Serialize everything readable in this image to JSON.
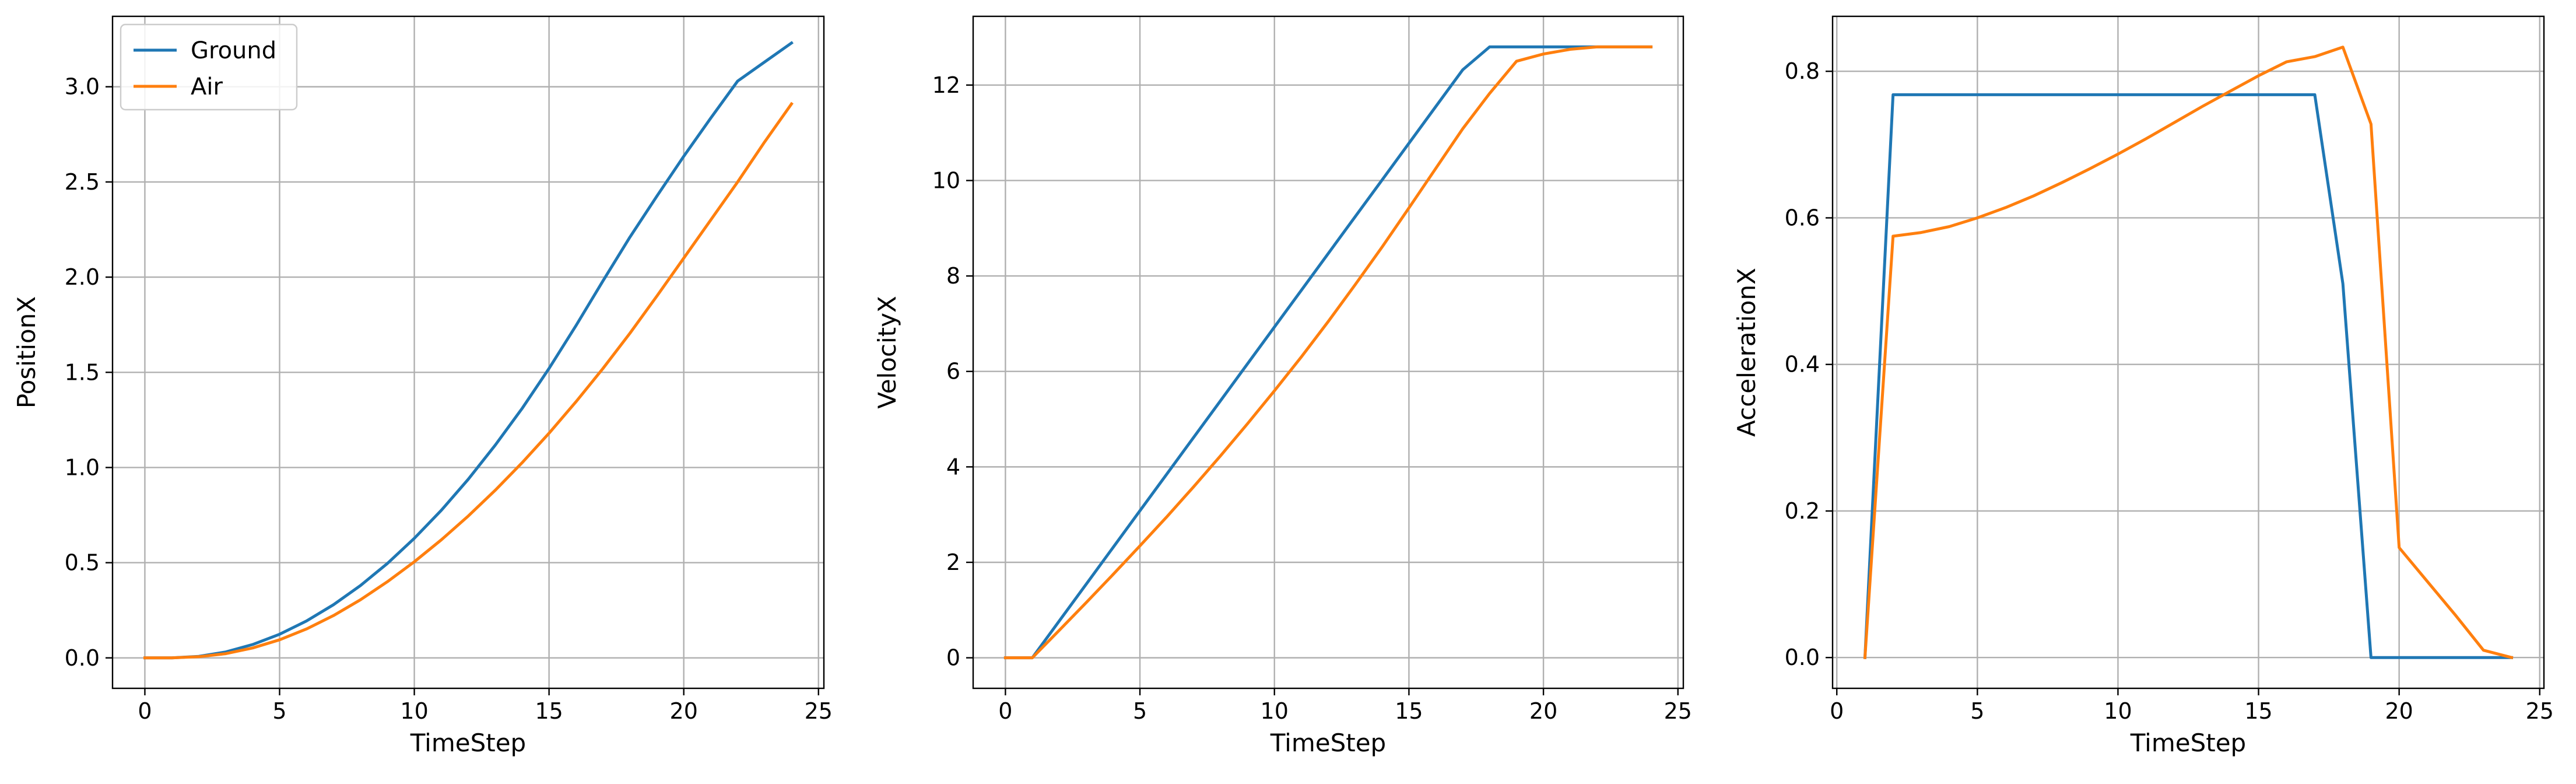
{
  "colors": {
    "ground": "#1f77b4",
    "air": "#ff7f0e",
    "grid": "#b0b0b0",
    "axes": "#000000"
  },
  "legend": {
    "placement": "upper-left",
    "entries": [
      "Ground",
      "Air"
    ]
  },
  "chart_data": [
    {
      "type": "line",
      "title": "",
      "xlabel": "TimeStep",
      "ylabel": "PositionX",
      "xlim": [
        -1.2,
        25.2
      ],
      "ylim": [
        -0.16,
        3.37
      ],
      "xticks": [
        0,
        5,
        10,
        15,
        20,
        25
      ],
      "yticks": [
        0.0,
        0.5,
        1.0,
        1.5,
        2.0,
        2.5,
        3.0
      ],
      "ytick_decimals": 1,
      "grid": true,
      "legend": true,
      "series": [
        {
          "name": "Ground",
          "color": "#1f77b4",
          "x": [
            0,
            1,
            2,
            3,
            4,
            5,
            6,
            7,
            8,
            9,
            10,
            11,
            12,
            13,
            14,
            15,
            16,
            17,
            18,
            19,
            20,
            21,
            22,
            23,
            24
          ],
          "y": [
            0,
            0,
            0.008,
            0.031,
            0.07,
            0.124,
            0.194,
            0.279,
            0.38,
            0.496,
            0.628,
            0.775,
            0.938,
            1.117,
            1.31,
            1.52,
            1.745,
            1.98,
            2.21,
            2.425,
            2.635,
            2.835,
            3.03,
            3.13,
            3.23
          ]
        },
        {
          "name": "Air",
          "color": "#ff7f0e",
          "x": [
            0,
            1,
            2,
            3,
            4,
            5,
            6,
            7,
            8,
            9,
            10,
            11,
            12,
            13,
            14,
            15,
            16,
            17,
            18,
            19,
            20,
            21,
            22,
            23,
            24
          ],
          "y": [
            0,
            0,
            0.006,
            0.022,
            0.052,
            0.095,
            0.152,
            0.222,
            0.305,
            0.4,
            0.505,
            0.62,
            0.745,
            0.88,
            1.025,
            1.18,
            1.345,
            1.52,
            1.705,
            1.9,
            2.1,
            2.3,
            2.5,
            2.71,
            2.91
          ]
        }
      ]
    },
    {
      "type": "line",
      "title": "",
      "xlabel": "TimeStep",
      "ylabel": "VelocityX",
      "xlim": [
        -1.2,
        25.2
      ],
      "ylim": [
        -0.64,
        13.44
      ],
      "xticks": [
        0,
        5,
        10,
        15,
        20,
        25
      ],
      "yticks": [
        0,
        2,
        4,
        6,
        8,
        10,
        12
      ],
      "ytick_decimals": 0,
      "grid": true,
      "legend": false,
      "series": [
        {
          "name": "Ground",
          "color": "#1f77b4",
          "x": [
            0,
            1,
            2,
            3,
            4,
            5,
            6,
            7,
            8,
            9,
            10,
            11,
            12,
            13,
            14,
            15,
            16,
            17,
            18,
            19,
            20,
            21,
            22,
            23,
            24
          ],
          "y": [
            0,
            0,
            0.77,
            1.54,
            2.31,
            3.08,
            3.85,
            4.62,
            5.39,
            6.16,
            6.93,
            7.7,
            8.47,
            9.24,
            10.01,
            10.78,
            11.55,
            12.32,
            12.8,
            12.8,
            12.8,
            12.8,
            12.8,
            12.8,
            12.8
          ]
        },
        {
          "name": "Air",
          "color": "#ff7f0e",
          "x": [
            0,
            1,
            2,
            3,
            4,
            5,
            6,
            7,
            8,
            9,
            10,
            11,
            12,
            13,
            14,
            15,
            16,
            17,
            18,
            19,
            20,
            21,
            22,
            23,
            24
          ],
          "y": [
            0,
            0,
            0.575,
            1.155,
            1.745,
            2.345,
            2.955,
            3.585,
            4.235,
            4.905,
            5.595,
            6.305,
            7.045,
            7.815,
            8.605,
            9.425,
            10.255,
            11.085,
            11.825,
            12.5,
            12.65,
            12.75,
            12.8,
            12.8,
            12.8
          ]
        }
      ]
    },
    {
      "type": "line",
      "title": "",
      "xlabel": "TimeStep",
      "ylabel": "AccelerationX",
      "xlim": [
        -0.15,
        25.15
      ],
      "ylim": [
        -0.042,
        0.875
      ],
      "xticks": [
        0,
        5,
        10,
        15,
        20,
        25
      ],
      "yticks": [
        0.0,
        0.2,
        0.4,
        0.6,
        0.8
      ],
      "ytick_decimals": 1,
      "grid": true,
      "legend": false,
      "series": [
        {
          "name": "Ground",
          "color": "#1f77b4",
          "x": [
            1,
            2,
            3,
            4,
            5,
            6,
            7,
            8,
            9,
            10,
            11,
            12,
            13,
            14,
            15,
            16,
            17,
            18,
            19,
            20,
            21,
            22,
            23,
            24
          ],
          "y": [
            0,
            0.768,
            0.768,
            0.768,
            0.768,
            0.768,
            0.768,
            0.768,
            0.768,
            0.768,
            0.768,
            0.768,
            0.768,
            0.768,
            0.768,
            0.768,
            0.768,
            0.51,
            0,
            0,
            0,
            0,
            0,
            0
          ]
        },
        {
          "name": "Air",
          "color": "#ff7f0e",
          "x": [
            1,
            2,
            3,
            4,
            5,
            6,
            7,
            8,
            9,
            10,
            11,
            12,
            13,
            14,
            15,
            16,
            17,
            18,
            19,
            20,
            21,
            22,
            23,
            24
          ],
          "y": [
            0,
            0.575,
            0.58,
            0.588,
            0.6,
            0.614,
            0.63,
            0.648,
            0.667,
            0.687,
            0.708,
            0.73,
            0.752,
            0.773,
            0.794,
            0.813,
            0.82,
            0.833,
            0.728,
            0.15,
            0.104,
            0.058,
            0.01,
            0
          ]
        }
      ]
    }
  ]
}
